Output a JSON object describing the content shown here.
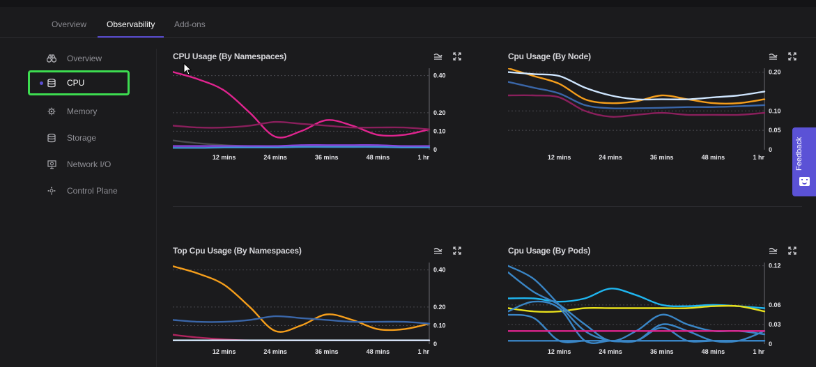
{
  "tabs": [
    {
      "label": "Overview",
      "active": false
    },
    {
      "label": "Observability",
      "active": true
    },
    {
      "label": "Add-ons",
      "active": false
    }
  ],
  "sidebar": {
    "items": [
      {
        "label": "Overview",
        "icon": "binoculars-icon",
        "active": false
      },
      {
        "label": "CPU",
        "icon": "database-icon",
        "active": true
      },
      {
        "label": "Memory",
        "icon": "memory-chip-icon",
        "active": false
      },
      {
        "label": "Storage",
        "icon": "database-icon",
        "active": false
      },
      {
        "label": "Network I/O",
        "icon": "network-monitor-icon",
        "active": false
      },
      {
        "label": "Control Plane",
        "icon": "control-plane-icon",
        "active": false
      }
    ]
  },
  "panel_controls": {
    "legend_icon": "legend-lines-icon",
    "expand_icon": "expand-icon"
  },
  "feedback": {
    "label": "Feedback",
    "icon": "smiley-face-icon"
  },
  "colors": {
    "accent": "#5b4ed3",
    "active_outline": "#3ddc50",
    "feedback_bg": "#5b52d6"
  },
  "panels": [
    {
      "title": "CPU Usage (By Namespaces)"
    },
    {
      "title": "Cpu Usage (By Node)"
    },
    {
      "title": "Top Cpu Usage (By Namespaces)"
    },
    {
      "title": "Cpu Usage (By Pods)"
    }
  ],
  "chart_data": [
    {
      "type": "line",
      "title": "CPU Usage (By Namespaces)",
      "x_ticks": [
        "12 mins",
        "24 mins",
        "36 mins",
        "48 mins",
        "1 hr"
      ],
      "x": [
        0,
        6,
        12,
        18,
        24,
        30,
        36,
        42,
        48,
        54,
        60
      ],
      "ylim": [
        0,
        0.44
      ],
      "y_ticks": [
        "0.40",
        "0.20",
        "0.10",
        "0"
      ],
      "y_tick_values": [
        0.4,
        0.2,
        0.1,
        0
      ],
      "series": [
        {
          "color": "#e0248f",
          "values": [
            0.42,
            0.38,
            0.32,
            0.2,
            0.07,
            0.1,
            0.16,
            0.13,
            0.08,
            0.08,
            0.11
          ]
        },
        {
          "color": "#8a1f5c",
          "values": [
            0.13,
            0.12,
            0.12,
            0.13,
            0.15,
            0.14,
            0.13,
            0.12,
            0.12,
            0.12,
            0.11
          ]
        },
        {
          "color": "#4a4a50",
          "values": [
            0.05,
            0.035,
            0.025,
            0.02,
            0.02,
            0.02,
            0.02,
            0.02,
            0.02,
            0.02,
            0.02
          ]
        },
        {
          "color": "#8a44e0",
          "values": [
            0.02,
            0.02,
            0.02,
            0.02,
            0.02,
            0.025,
            0.025,
            0.025,
            0.025,
            0.02,
            0.02
          ]
        },
        {
          "color": "#3f8fd0",
          "values": [
            0.01,
            0.01,
            0.012,
            0.012,
            0.012,
            0.015,
            0.015,
            0.015,
            0.015,
            0.012,
            0.012
          ]
        }
      ]
    },
    {
      "type": "line",
      "title": "Cpu Usage (By Node)",
      "x_ticks": [
        "12 mins",
        "24 mins",
        "36 mins",
        "48 mins",
        "1 hr"
      ],
      "x": [
        0,
        6,
        12,
        18,
        24,
        30,
        36,
        42,
        48,
        54,
        60
      ],
      "ylim": [
        0,
        0.21
      ],
      "y_ticks": [
        "0.20",
        "0.10",
        "0.05",
        "0"
      ],
      "y_tick_values": [
        0.2,
        0.1,
        0.05,
        0
      ],
      "series": [
        {
          "color": "#f59e1b",
          "values": [
            0.21,
            0.19,
            0.17,
            0.13,
            0.12,
            0.125,
            0.14,
            0.13,
            0.12,
            0.12,
            0.13
          ]
        },
        {
          "color": "#cfe6ff",
          "values": [
            0.2,
            0.195,
            0.19,
            0.16,
            0.14,
            0.13,
            0.13,
            0.13,
            0.135,
            0.14,
            0.15
          ]
        },
        {
          "color": "#3a66a8",
          "values": [
            0.175,
            0.16,
            0.145,
            0.115,
            0.107,
            0.107,
            0.108,
            0.11,
            0.11,
            0.112,
            0.115
          ]
        },
        {
          "color": "#8a1f5c",
          "values": [
            0.14,
            0.14,
            0.135,
            0.1,
            0.085,
            0.09,
            0.095,
            0.09,
            0.09,
            0.09,
            0.095
          ]
        }
      ]
    },
    {
      "type": "line",
      "title": "Top Cpu Usage (By Namespaces)",
      "x_ticks": [
        "12 mins",
        "24 mins",
        "36 mins",
        "48 mins",
        "1 hr"
      ],
      "x": [
        0,
        6,
        12,
        18,
        24,
        30,
        36,
        42,
        48,
        54,
        60
      ],
      "ylim": [
        0,
        0.44
      ],
      "y_ticks": [
        "0.40",
        "0.20",
        "0.10",
        "0"
      ],
      "y_tick_values": [
        0.4,
        0.2,
        0.1,
        0
      ],
      "series": [
        {
          "color": "#f59e1b",
          "values": [
            0.42,
            0.38,
            0.32,
            0.2,
            0.07,
            0.1,
            0.16,
            0.13,
            0.08,
            0.08,
            0.11
          ]
        },
        {
          "color": "#3a66a8",
          "values": [
            0.13,
            0.12,
            0.12,
            0.13,
            0.15,
            0.14,
            0.13,
            0.12,
            0.12,
            0.12,
            0.11
          ]
        },
        {
          "color": "#b0245e",
          "values": [
            0.05,
            0.035,
            0.025,
            0.02,
            0.02,
            0.02,
            0.02,
            0.02,
            0.02,
            0.02,
            0.02
          ]
        },
        {
          "color": "#d8ecff",
          "values": [
            0.02,
            0.02,
            0.02,
            0.02,
            0.02,
            0.02,
            0.02,
            0.02,
            0.02,
            0.02,
            0.02
          ]
        }
      ]
    },
    {
      "type": "line",
      "title": "Cpu Usage (By Pods)",
      "x_ticks": [
        "12 mins",
        "24 mins",
        "36 mins",
        "48 mins",
        "1 hr"
      ],
      "x": [
        0,
        6,
        12,
        18,
        24,
        30,
        36,
        42,
        48,
        54,
        60
      ],
      "ylim": [
        0,
        0.125
      ],
      "y_ticks": [
        "0.12",
        "0.06",
        "0.03",
        "0"
      ],
      "y_tick_values": [
        0.12,
        0.06,
        0.03,
        0
      ],
      "series": [
        {
          "color": "#1fb6f0",
          "values": [
            0.07,
            0.07,
            0.065,
            0.07,
            0.085,
            0.075,
            0.06,
            0.058,
            0.06,
            0.058,
            0.055
          ]
        },
        {
          "color": "#e8e01c",
          "values": [
            0.055,
            0.05,
            0.05,
            0.055,
            0.055,
            0.055,
            0.055,
            0.055,
            0.058,
            0.058,
            0.05
          ]
        },
        {
          "color": "#3a86c6",
          "values": [
            0.12,
            0.1,
            0.06,
            0.02,
            0.005,
            0.005,
            0.005,
            0.005,
            0.005,
            0.005,
            0.005
          ]
        },
        {
          "color": "#3a86c6",
          "values": [
            0.11,
            0.08,
            0.06,
            0.03,
            0.005,
            0.02,
            0.045,
            0.03,
            0.02,
            0.02,
            0.015
          ]
        },
        {
          "color": "#3a86c6",
          "values": [
            0.05,
            0.065,
            0.055,
            0.005,
            0.005,
            0.005,
            0.03,
            0.02,
            0.005,
            0.005,
            0.02
          ]
        },
        {
          "color": "#3a86c6",
          "values": [
            0.045,
            0.04,
            0.005,
            0.005,
            0.005,
            0.005,
            0.025,
            0.005,
            0.005,
            0.005,
            0.005
          ]
        },
        {
          "color": "#e0248f",
          "values": [
            0.02,
            0.02,
            0.02,
            0.02,
            0.02,
            0.02,
            0.02,
            0.02,
            0.02,
            0.02,
            0.02
          ]
        },
        {
          "color": "#3a86c6",
          "values": [
            0.005,
            0.005,
            0.005,
            0.005,
            0.005,
            0.005,
            0.005,
            0.005,
            0.005,
            0.005,
            0.005
          ]
        }
      ]
    }
  ]
}
